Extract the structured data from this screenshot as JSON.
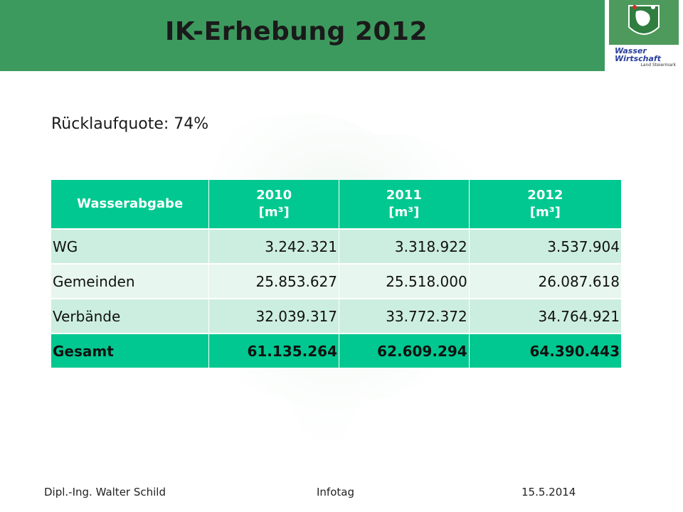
{
  "header": {
    "title": "IK-Erhebung 2012",
    "brand_color": "#3d9a5e",
    "logo_text_line1": "Wasser",
    "logo_text_line2": "Wirtschaft",
    "logo_subtext": "Land Steiermark"
  },
  "main": {
    "return_rate": "Rücklaufquote: 74%"
  },
  "table": {
    "headers": [
      "Wasserabgabe",
      "2010",
      "[m³]",
      "2011",
      "[m³]",
      "2012",
      "[m³]"
    ],
    "rows": [
      {
        "label": "WG",
        "v2010": "3.242.321",
        "v2011": "3.318.922",
        "v2012": "3.537.904"
      },
      {
        "label": "Gemeinden",
        "v2010": "25.853.627",
        "v2011": "25.518.000",
        "v2012": "26.087.618"
      },
      {
        "label": "Verbände",
        "v2010": "32.039.317",
        "v2011": "33.772.372",
        "v2012": "34.764.921"
      },
      {
        "label": "Gesamt",
        "v2010": "61.135.264",
        "v2011": "62.609.294",
        "v2012": "64.390.443"
      }
    ],
    "header_color": "#00c890"
  },
  "footer": {
    "author": "Dipl.-Ing. Walter Schild",
    "event": "Infotag",
    "date": "15.5.2014"
  }
}
